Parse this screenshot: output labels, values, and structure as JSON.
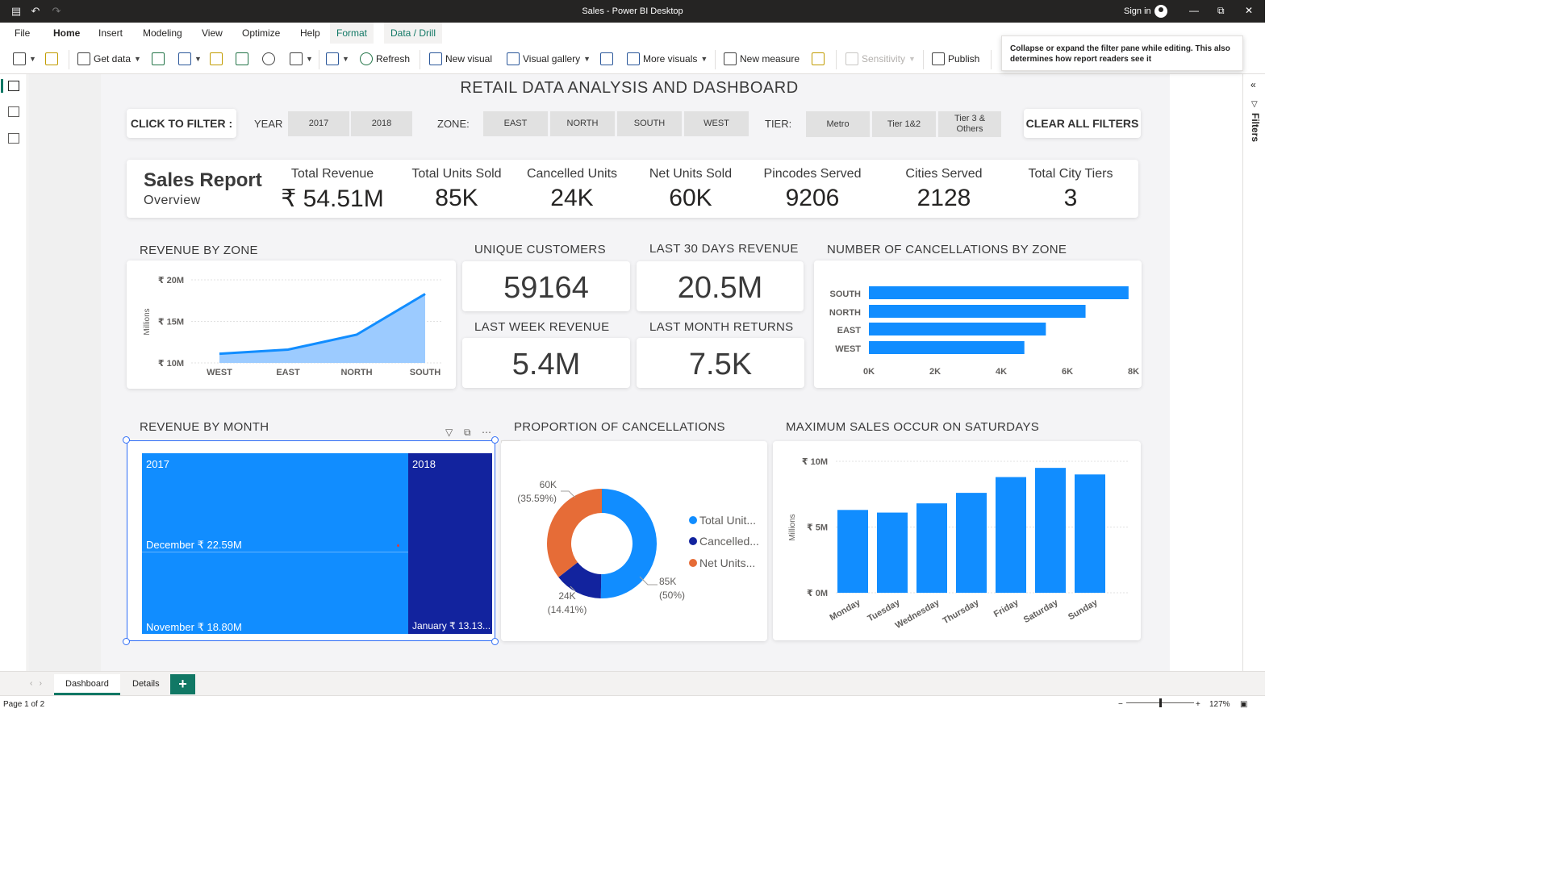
{
  "window": {
    "title": "Sales - Power BI Desktop",
    "sign_in": "Sign in"
  },
  "ribbon_tabs": [
    "File",
    "Home",
    "Insert",
    "Modeling",
    "View",
    "Optimize",
    "Help"
  ],
  "context_tabs": [
    "Format",
    "Data / Drill"
  ],
  "toolbar": {
    "get_data": "Get data",
    "refresh": "Refresh",
    "new_visual": "New visual",
    "visual_gallery": "Visual gallery",
    "more_visuals": "More visuals",
    "new_measure": "New measure",
    "sensitivity": "Sensitivity",
    "publish": "Publish"
  },
  "tooltip": "Collapse or expand the filter pane while editing. This also determines how report readers see it",
  "filters_pane": {
    "label": "Filters"
  },
  "report": {
    "title": "RETAIL DATA ANALYSIS AND DASHBOARD",
    "click_to_filter": "CLICK TO FILTER :",
    "clear_all_filters": "CLEAR ALL FILTERS",
    "year_label": "YEAR",
    "years": [
      "2017",
      "2018"
    ],
    "zone_label": "ZONE:",
    "zones": [
      "EAST",
      "NORTH",
      "SOUTH",
      "WEST"
    ],
    "tier_label": "TIER:",
    "tiers": [
      "Metro",
      "Tier 1&2",
      "Tier 3 & Others"
    ],
    "sales_report_title": "Sales Report",
    "sales_report_sub": "Overview",
    "kpis": [
      {
        "label": "Total Revenue",
        "value": "₹ 54.51M"
      },
      {
        "label": "Total Units Sold",
        "value": "85K"
      },
      {
        "label": "Cancelled Units",
        "value": "24K"
      },
      {
        "label": "Net Units Sold",
        "value": "60K"
      },
      {
        "label": "Pincodes Served",
        "value": "9206"
      },
      {
        "label": "Cities Served",
        "value": "2128"
      },
      {
        "label": "Total City Tiers",
        "value": "3"
      }
    ],
    "sections": {
      "revenue_by_zone": "REVENUE BY ZONE",
      "unique_customers": "UNIQUE CUSTOMERS",
      "last_30_days_revenue": "LAST 30 DAYS REVENUE",
      "last_week_revenue": "LAST WEEK REVENUE",
      "last_month_returns": "LAST MONTH RETURNS",
      "cancellations_by_zone": "NUMBER OF CANCELLATIONS BY ZONE",
      "revenue_by_month": "REVENUE BY MONTH",
      "proportion_of_cancellations": "PROPORTION OF CANCELLATIONS",
      "max_sales_saturdays": "MAXIMUM SALES OCCUR ON SATURDAYS"
    },
    "cards": {
      "unique_customers": "59164",
      "last_30_days_revenue": "20.5M",
      "last_week_revenue": "5.4M",
      "last_month_returns": "7.5K"
    },
    "treemap": {
      "cells": [
        {
          "group": "2017",
          "label": "December ₹ 22.59M"
        },
        {
          "group": "",
          "label": "November ₹ 18.80M"
        },
        {
          "group": "2018",
          "label": "January ₹ 13.13..."
        }
      ]
    }
  },
  "chart_data": [
    {
      "type": "area",
      "title": "REVENUE BY ZONE",
      "categories": [
        "WEST",
        "EAST",
        "NORTH",
        "SOUTH"
      ],
      "values": [
        11.1,
        11.6,
        13.4,
        18.3
      ],
      "ylabel": "Millions",
      "yticks": [
        "₹ 10M",
        "₹ 15M",
        "₹ 20M"
      ],
      "ylim": [
        10,
        20
      ],
      "color": "#118dff",
      "fill": "#9ccbff"
    },
    {
      "type": "bar",
      "orientation": "horizontal",
      "title": "NUMBER OF CANCELLATIONS BY ZONE",
      "categories": [
        "SOUTH",
        "NORTH",
        "EAST",
        "WEST"
      ],
      "values": [
        7850,
        6550,
        5350,
        4700
      ],
      "xticks": [
        "0K",
        "2K",
        "4K",
        "6K",
        "8K"
      ],
      "xlim": [
        0,
        8000
      ],
      "color": "#118dff"
    },
    {
      "type": "pie",
      "donut": true,
      "title": "PROPORTION OF CANCELLATIONS",
      "slices": [
        {
          "name": "Total Unit...",
          "value": 85,
          "label": "85K",
          "pct": "(50%)",
          "color": "#118dff"
        },
        {
          "name": "Cancelled...",
          "value": 24,
          "label": "24K",
          "pct": "(14.41%)",
          "color": "#12239e"
        },
        {
          "name": "Net Units...",
          "value": 60,
          "label": "60K",
          "pct": "(35.59%)",
          "color": "#e66c37"
        }
      ]
    },
    {
      "type": "bar",
      "title": "MAXIMUM SALES OCCUR ON SATURDAYS",
      "categories": [
        "Monday",
        "Tuesday",
        "Wednesday",
        "Thursday",
        "Friday",
        "Saturday",
        "Sunday"
      ],
      "values": [
        6.3,
        6.1,
        6.8,
        7.6,
        8.8,
        9.5,
        9.0
      ],
      "ylabel": "Millions",
      "yticks": [
        "₹ 0M",
        "₹ 5M",
        "₹ 10M"
      ],
      "ylim": [
        0,
        10
      ],
      "color": "#118dff"
    }
  ],
  "pages": [
    "Dashboard",
    "Details"
  ],
  "status": {
    "page": "Page 1 of 2",
    "zoom": "127%"
  }
}
